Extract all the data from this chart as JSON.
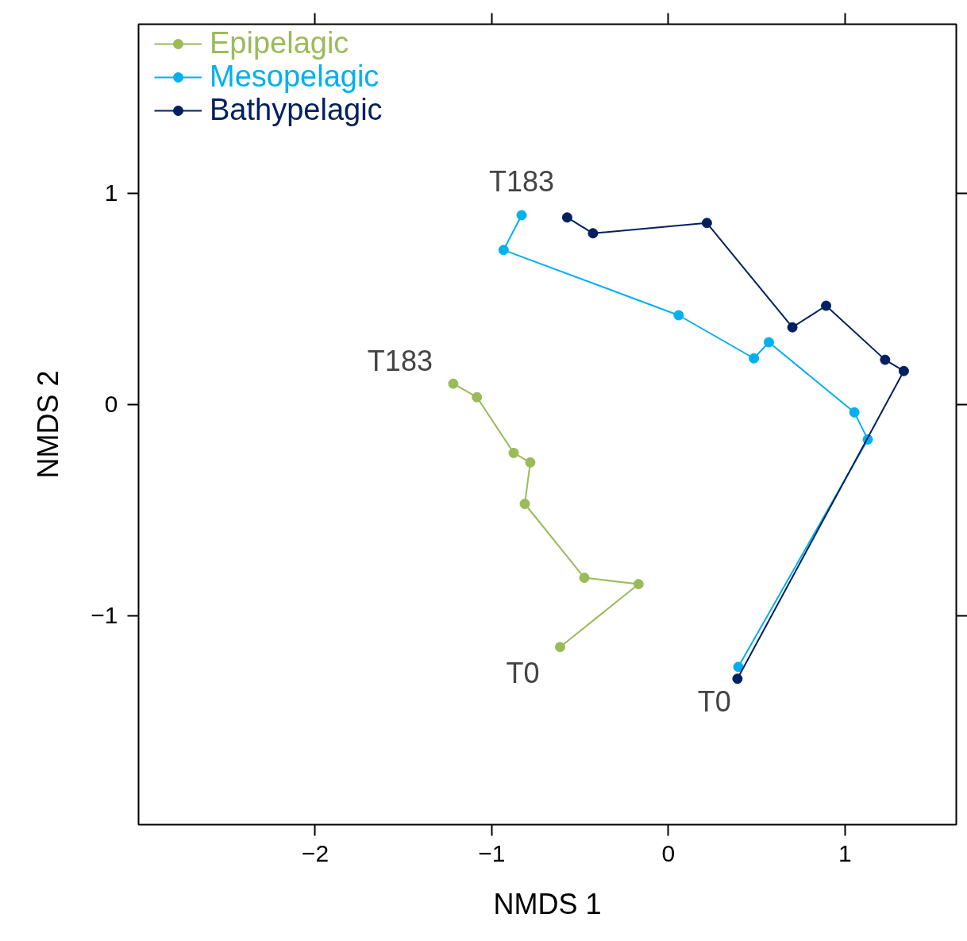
{
  "chart_data": {
    "type": "line",
    "xlabel": "NMDS 1",
    "ylabel": "NMDS 2",
    "xlim": [
      -3,
      1.63
    ],
    "ylim": [
      -1.99,
      1.8
    ],
    "xticks": [
      {
        "value": -2,
        "label": "−2"
      },
      {
        "value": -1,
        "label": "−1"
      },
      0,
      1
    ],
    "yticks": [
      {
        "value": -1,
        "label": "−1"
      },
      0,
      1
    ],
    "grid": false,
    "legend": "top left",
    "marker": "circle",
    "line_style": "solid",
    "series": [
      {
        "name": "Epipelagic",
        "color": "#9bbb59",
        "x": [
          -0.613,
          -0.169,
          -0.476,
          -0.813,
          -0.782,
          -0.876,
          -1.084,
          -1.218
        ],
        "values": [
          -1.149,
          -0.851,
          -0.821,
          -0.471,
          -0.275,
          -0.23,
          0.034,
          0.098
        ]
      },
      {
        "name": "Mesopelagic",
        "color": "#00b0f0",
        "x": [
          0.396,
          1.129,
          1.053,
          0.569,
          0.484,
          0.058,
          -0.933,
          -0.831
        ],
        "values": [
          -1.243,
          -0.166,
          -0.038,
          0.294,
          0.218,
          0.422,
          0.731,
          0.896
        ]
      },
      {
        "name": "Bathypelagic",
        "color": "#002060",
        "x": [
          0.391,
          1.333,
          1.227,
          0.893,
          0.702,
          0.218,
          -0.427,
          -0.573
        ],
        "values": [
          -1.299,
          0.158,
          0.211,
          0.467,
          0.365,
          0.859,
          0.81,
          0.885
        ]
      }
    ],
    "annotations": [
      {
        "text": "T183",
        "x": -0.831,
        "y": 0.896
      },
      {
        "text": "T183",
        "x": -1.218,
        "y": 0.098
      },
      {
        "text": "T0",
        "x": -0.613,
        "y": -1.149
      },
      {
        "text": "T0",
        "x": 0.391,
        "y": -1.299
      }
    ]
  }
}
